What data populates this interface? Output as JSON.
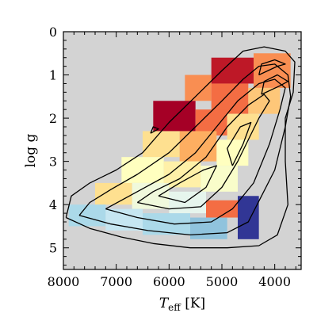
{
  "chart_data": {
    "type": "heatmap",
    "title": "",
    "xlabel": {
      "symbol": "T",
      "subscript": "eff",
      "unit": " [K]"
    },
    "ylabel": "log g",
    "xlim": [
      8000,
      3500
    ],
    "ylim": [
      0,
      5.5
    ],
    "x_inverted": true,
    "y_inverted": true,
    "x_ticks": [
      8000,
      7000,
      6000,
      5000,
      4000
    ],
    "x_tick_labels": [
      "8000",
      "7000",
      "6000",
      "5000",
      "4000"
    ],
    "y_ticks": [
      0,
      1,
      2,
      3,
      4,
      5
    ],
    "y_tick_labels": [
      "0",
      "1",
      "2",
      "3",
      "4",
      "5"
    ],
    "background_color": "#d3d3d3",
    "colormap": [
      "#313695",
      "#4575b4",
      "#74add1",
      "#abd9e9",
      "#e0f3f8",
      "#ffffbf",
      "#fee090",
      "#fdae61",
      "#f46d43",
      "#d73027",
      "#a50026"
    ],
    "grid": false,
    "legend": "none",
    "cells": [
      {
        "x_range": [
          5200,
          4400
        ],
        "y_range": [
          0.6,
          1.2
        ],
        "level": 0.95
      },
      {
        "x_range": [
          4400,
          3700
        ],
        "y_range": [
          0.5,
          1.3
        ],
        "level": 0.75
      },
      {
        "x_range": [
          5700,
          5200
        ],
        "y_range": [
          1.0,
          1.6
        ],
        "level": 0.75
      },
      {
        "x_range": [
          5200,
          4500
        ],
        "y_range": [
          1.2,
          1.9
        ],
        "level": 0.8
      },
      {
        "x_range": [
          4500,
          3900
        ],
        "y_range": [
          1.3,
          1.9
        ],
        "level": 0.65
      },
      {
        "x_range": [
          6300,
          5500
        ],
        "y_range": [
          1.6,
          2.3
        ],
        "level": 1.0
      },
      {
        "x_range": [
          5500,
          4900
        ],
        "y_range": [
          1.8,
          2.4
        ],
        "level": 0.8
      },
      {
        "x_range": [
          4900,
          4300
        ],
        "y_range": [
          1.9,
          2.5
        ],
        "level": 0.6
      },
      {
        "x_range": [
          6500,
          5800
        ],
        "y_range": [
          2.3,
          2.9
        ],
        "level": 0.6
      },
      {
        "x_range": [
          5800,
          5100
        ],
        "y_range": [
          2.3,
          3.0
        ],
        "level": 0.7
      },
      {
        "x_range": [
          5100,
          4500
        ],
        "y_range": [
          2.5,
          3.1
        ],
        "level": 0.5
      },
      {
        "x_range": [
          6900,
          6100
        ],
        "y_range": [
          2.9,
          3.5
        ],
        "level": 0.5
      },
      {
        "x_range": [
          6100,
          5400
        ],
        "y_range": [
          3.0,
          3.6
        ],
        "level": 0.55
      },
      {
        "x_range": [
          5400,
          4700
        ],
        "y_range": [
          3.1,
          3.7
        ],
        "level": 0.48
      },
      {
        "x_range": [
          7400,
          6700
        ],
        "y_range": [
          3.5,
          4.0
        ],
        "level": 0.6
      },
      {
        "x_range": [
          6700,
          6000
        ],
        "y_range": [
          3.5,
          4.1
        ],
        "level": 0.45
      },
      {
        "x_range": [
          6000,
          5300
        ],
        "y_range": [
          3.7,
          4.2
        ],
        "level": 0.42
      },
      {
        "x_range": [
          5300,
          4500
        ],
        "y_range": [
          3.9,
          4.3
        ],
        "level": 0.8
      },
      {
        "x_range": [
          7900,
          7200
        ],
        "y_range": [
          4.0,
          4.5
        ],
        "level": 0.3
      },
      {
        "x_range": [
          7200,
          6500
        ],
        "y_range": [
          4.1,
          4.6
        ],
        "level": 0.35
      },
      {
        "x_range": [
          6500,
          5600
        ],
        "y_range": [
          4.2,
          4.7
        ],
        "level": 0.3
      },
      {
        "x_range": [
          5600,
          4900
        ],
        "y_range": [
          4.3,
          4.8
        ],
        "level": 0.25
      },
      {
        "x_range": [
          4700,
          4300
        ],
        "y_range": [
          3.8,
          4.8
        ],
        "level": 0.0
      }
    ],
    "contours": [
      [
        [
          7950,
          4.3
        ],
        [
          7500,
          4.55
        ],
        [
          6900,
          4.75
        ],
        [
          6300,
          4.9
        ],
        [
          5600,
          5.0
        ],
        [
          4900,
          5.0
        ],
        [
          4300,
          4.95
        ],
        [
          3950,
          4.7
        ],
        [
          3750,
          4.0
        ],
        [
          3800,
          3.0
        ],
        [
          3800,
          2.0
        ],
        [
          3650,
          1.4
        ],
        [
          3620,
          0.7
        ],
        [
          3800,
          0.45
        ],
        [
          4200,
          0.35
        ],
        [
          4600,
          0.45
        ],
        [
          5000,
          0.9
        ],
        [
          5500,
          1.5
        ],
        [
          6000,
          2.1
        ],
        [
          6500,
          2.8
        ],
        [
          7000,
          3.2
        ],
        [
          7500,
          3.5
        ],
        [
          7850,
          3.8
        ],
        [
          7950,
          4.3
        ]
      ],
      [
        [
          7700,
          4.25
        ],
        [
          7100,
          4.45
        ],
        [
          6400,
          4.6
        ],
        [
          5600,
          4.7
        ],
        [
          4900,
          4.65
        ],
        [
          4500,
          4.4
        ],
        [
          4250,
          3.8
        ],
        [
          4000,
          3.2
        ],
        [
          3800,
          2.2
        ],
        [
          3700,
          1.5
        ],
        [
          3750,
          1.0
        ],
        [
          4000,
          0.75
        ],
        [
          4300,
          0.8
        ],
        [
          4600,
          1.1
        ],
        [
          5000,
          1.6
        ],
        [
          5500,
          2.2
        ],
        [
          6000,
          2.8
        ],
        [
          6600,
          3.3
        ],
        [
          7100,
          3.65
        ],
        [
          7500,
          3.95
        ],
        [
          7700,
          4.25
        ]
      ],
      [
        [
          7200,
          4.1
        ],
        [
          6600,
          4.3
        ],
        [
          5900,
          4.45
        ],
        [
          5200,
          4.4
        ],
        [
          4800,
          4.1
        ],
        [
          4400,
          3.5
        ],
        [
          4100,
          2.6
        ],
        [
          3900,
          1.8
        ],
        [
          3800,
          1.3
        ],
        [
          4000,
          1.1
        ],
        [
          4300,
          1.2
        ],
        [
          4700,
          1.6
        ],
        [
          5100,
          2.2
        ],
        [
          5500,
          2.8
        ],
        [
          6000,
          3.3
        ],
        [
          6600,
          3.7
        ],
        [
          7200,
          4.1
        ]
      ],
      [
        [
          6600,
          3.95
        ],
        [
          6000,
          4.1
        ],
        [
          5400,
          4.05
        ],
        [
          5000,
          3.6
        ],
        [
          4700,
          3.0
        ],
        [
          4500,
          2.5
        ],
        [
          4300,
          2.0
        ],
        [
          4100,
          1.6
        ],
        [
          4200,
          1.45
        ],
        [
          4500,
          1.7
        ],
        [
          4900,
          2.2
        ],
        [
          5300,
          2.9
        ],
        [
          5800,
          3.4
        ],
        [
          6300,
          3.7
        ],
        [
          6600,
          3.95
        ]
      ],
      [
        [
          6200,
          3.8
        ],
        [
          5700,
          3.95
        ],
        [
          5300,
          3.6
        ],
        [
          5100,
          3.1
        ],
        [
          5350,
          3.2
        ],
        [
          5800,
          3.5
        ],
        [
          6200,
          3.8
        ]
      ],
      [
        [
          4800,
          3.1
        ],
        [
          4600,
          2.6
        ],
        [
          4450,
          2.1
        ],
        [
          4650,
          2.2
        ],
        [
          4900,
          2.7
        ],
        [
          4800,
          3.1
        ]
      ],
      [
        [
          4250,
          1.45
        ],
        [
          3900,
          1.25
        ],
        [
          3750,
          1.15
        ],
        [
          3950,
          1.0
        ],
        [
          4200,
          1.15
        ],
        [
          4250,
          1.45
        ]
      ],
      [
        [
          4300,
          1.0
        ],
        [
          3950,
          0.8
        ],
        [
          3800,
          0.75
        ],
        [
          4000,
          0.65
        ],
        [
          4250,
          0.75
        ],
        [
          4300,
          1.0
        ]
      ],
      [
        [
          6350,
          2.35
        ],
        [
          6200,
          2.25
        ],
        [
          6300,
          2.2
        ],
        [
          6350,
          2.35
        ]
      ]
    ]
  }
}
